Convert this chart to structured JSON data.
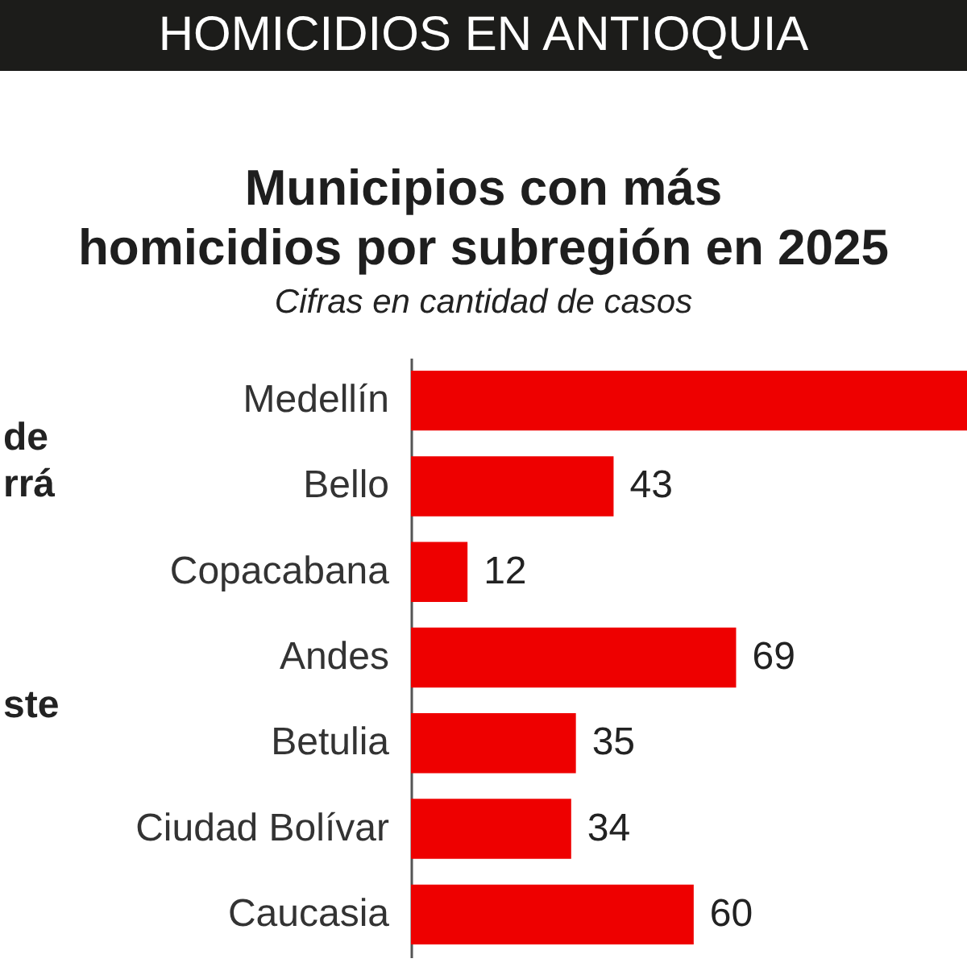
{
  "chart_data": {
    "type": "bar",
    "orientation": "horizontal",
    "title": "HOMICIDIOS EN ANTIOQUIA",
    "subtitle": "Municipios con más\nhomicidios por subregión en 2025",
    "annotations": [
      "Cifras en cantidad de casos",
      "de\nrrá",
      "ste"
    ],
    "categories": [
      "Medellín",
      "Bello",
      "Copacabana",
      "Andes",
      "Betulia",
      "Ciudad Bolívar",
      "Caucasia"
    ],
    "values": [
      118,
      43,
      12,
      69,
      35,
      34,
      60
    ],
    "value_labels": [
      null,
      "43",
      "12",
      "69",
      "35",
      "34",
      "60"
    ],
    "color": "#ee0000",
    "xlim": [
      0,
      118
    ],
    "tick_labels": "y",
    "grid": false
  }
}
